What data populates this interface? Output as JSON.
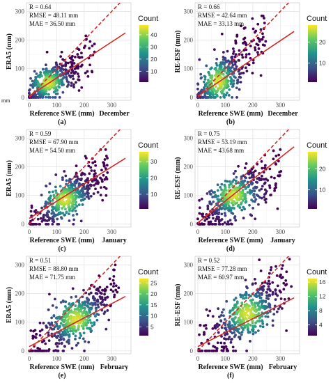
{
  "figure": {
    "stray_label": "mm"
  },
  "colorscale": [
    "#440154",
    "#3b528b",
    "#21918c",
    "#5ec962",
    "#fde725"
  ],
  "chart_data": [
    {
      "panel_label": "(a)",
      "type": "scatter",
      "subtype": "density-colored scatter with 1:1 line and regression fit",
      "xlabel": "Reference SWE (mm)",
      "ylabel": "ERA5 (mm)",
      "month": "December",
      "xlim": [
        -10,
        370
      ],
      "ylim": [
        -10,
        330
      ],
      "xticks": [
        0,
        100,
        200,
        300
      ],
      "yticks": [
        0,
        100,
        200,
        300
      ],
      "stats": {
        "r": "R = 0.64",
        "rmse": "RMSE = 48.11 mm",
        "mae": "MAE = 36.50 mm"
      },
      "legend": {
        "title": "Count",
        "range": [
          1,
          48
        ],
        "ticks": [
          10,
          20,
          30,
          40
        ]
      },
      "one_to_one_line": {
        "x": [
          0,
          350
        ],
        "y": [
          0,
          350
        ]
      },
      "fit_line": {
        "x": [
          0,
          350
        ],
        "y": [
          5,
          225
        ]
      },
      "point_cloud": {
        "x_range": [
          0,
          250
        ],
        "y_range": [
          0,
          215
        ],
        "x_center": 70,
        "y_center": 50,
        "n_points": 420
      }
    },
    {
      "panel_label": "(b)",
      "type": "scatter",
      "subtype": "density-colored scatter with 1:1 line and regression fit",
      "xlabel": "Reference SWE (mm)",
      "ylabel": "RE-ESF (mm)",
      "month": "December",
      "xlim": [
        -10,
        370
      ],
      "ylim": [
        -10,
        330
      ],
      "xticks": [
        0,
        100,
        200,
        300
      ],
      "yticks": [
        0,
        100,
        200,
        300
      ],
      "stats": {
        "r": "R = 0.66",
        "rmse": "RMSE = 42.64 mm",
        "mae": "MAE = 33.13 mm"
      },
      "legend": {
        "title": "Count",
        "range": [
          1,
          28
        ],
        "ticks": [
          10,
          20
        ]
      },
      "one_to_one_line": {
        "x": [
          0,
          350
        ],
        "y": [
          0,
          350
        ]
      },
      "fit_line": {
        "x": [
          0,
          350
        ],
        "y": [
          5,
          230
        ]
      },
      "point_cloud": {
        "x_range": [
          0,
          260
        ],
        "y_range": [
          0,
          300
        ],
        "x_center": 75,
        "y_center": 55,
        "n_points": 420
      }
    },
    {
      "panel_label": "(c)",
      "type": "scatter",
      "subtype": "density-colored scatter with 1:1 line and regression fit",
      "xlabel": "Reference SWE (mm)",
      "ylabel": "ERA5 (mm)",
      "month": "January",
      "xlim": [
        -10,
        370
      ],
      "ylim": [
        -10,
        330
      ],
      "xticks": [
        0,
        100,
        200,
        300
      ],
      "yticks": [
        0,
        100,
        200,
        300
      ],
      "stats": {
        "r": "R = 0.59",
        "rmse": "RMSE = 67.90 mm",
        "mae": "MAE = 54.50 mm"
      },
      "legend": {
        "title": "Count",
        "range": [
          1,
          36
        ],
        "ticks": [
          10,
          20,
          30
        ]
      },
      "one_to_one_line": {
        "x": [
          0,
          350
        ],
        "y": [
          0,
          350
        ]
      },
      "fit_line": {
        "x": [
          0,
          350
        ],
        "y": [
          20,
          230
        ]
      },
      "point_cloud": {
        "x_range": [
          0,
          300
        ],
        "y_range": [
          0,
          260
        ],
        "x_center": 130,
        "y_center": 85,
        "n_points": 460
      }
    },
    {
      "panel_label": "(d)",
      "type": "scatter",
      "subtype": "density-colored scatter with 1:1 line and regression fit",
      "xlabel": "Reference SWE (mm)",
      "ylabel": "RE-ESF (mm)",
      "month": "January",
      "xlim": [
        -10,
        370
      ],
      "ylim": [
        -10,
        330
      ],
      "xticks": [
        0,
        100,
        200,
        300
      ],
      "yticks": [
        0,
        100,
        200,
        300
      ],
      "stats": {
        "r": "R = 0.75",
        "rmse": "RMSE = 53.19 mm",
        "mae": "MAE = 43.68 mm"
      },
      "legend": {
        "title": "Count",
        "range": [
          1,
          28
        ],
        "ticks": [
          10,
          20
        ]
      },
      "one_to_one_line": {
        "x": [
          0,
          350
        ],
        "y": [
          0,
          350
        ]
      },
      "fit_line": {
        "x": [
          0,
          350
        ],
        "y": [
          5,
          270
        ]
      },
      "point_cloud": {
        "x_range": [
          0,
          320
        ],
        "y_range": [
          0,
          260
        ],
        "x_center": 130,
        "y_center": 100,
        "n_points": 460
      }
    },
    {
      "panel_label": "(e)",
      "type": "scatter",
      "subtype": "density-colored scatter with 1:1 line and regression fit",
      "xlabel": "Reference SWE (mm)",
      "ylabel": "ERA5 (mm)",
      "month": "February",
      "xlim": [
        -10,
        370
      ],
      "ylim": [
        -10,
        330
      ],
      "xticks": [
        0,
        100,
        200,
        300
      ],
      "yticks": [
        0,
        100,
        200,
        300
      ],
      "stats": {
        "r": "R = 0.51",
        "rmse": "RMSE = 88.80 mm",
        "mae": "MAE = 71.75 mm"
      },
      "legend": {
        "title": "Count",
        "range": [
          1,
          27
        ],
        "ticks": [
          5,
          10,
          15,
          20,
          25
        ]
      },
      "one_to_one_line": {
        "x": [
          0,
          350
        ],
        "y": [
          0,
          350
        ]
      },
      "fit_line": {
        "x": [
          0,
          350
        ],
        "y": [
          15,
          190
        ]
      },
      "point_cloud": {
        "x_range": [
          0,
          340
        ],
        "y_range": [
          0,
          300
        ],
        "x_center": 170,
        "y_center": 110,
        "n_points": 480
      }
    },
    {
      "panel_label": "(f)",
      "type": "scatter",
      "subtype": "density-colored scatter with 1:1 line and regression fit",
      "xlabel": "Reference SWE (mm)",
      "ylabel": "RE-ESF (mm)",
      "month": "February",
      "xlim": [
        -10,
        370
      ],
      "ylim": [
        -10,
        330
      ],
      "xticks": [
        0,
        100,
        200,
        300
      ],
      "yticks": [
        0,
        100,
        200,
        300
      ],
      "stats": {
        "r": "R = 0.52",
        "rmse": "RMSE = 77.28 mm",
        "mae": "MAE = 60.97 mm"
      },
      "legend": {
        "title": "Count",
        "range": [
          1,
          17
        ],
        "ticks": [
          4,
          8,
          12,
          16
        ]
      },
      "one_to_one_line": {
        "x": [
          0,
          350
        ],
        "y": [
          0,
          350
        ]
      },
      "fit_line": {
        "x": [
          0,
          350
        ],
        "y": [
          15,
          185
        ]
      },
      "point_cloud": {
        "x_range": [
          0,
          340
        ],
        "y_range": [
          0,
          320
        ],
        "x_center": 180,
        "y_center": 130,
        "n_points": 480
      }
    }
  ]
}
